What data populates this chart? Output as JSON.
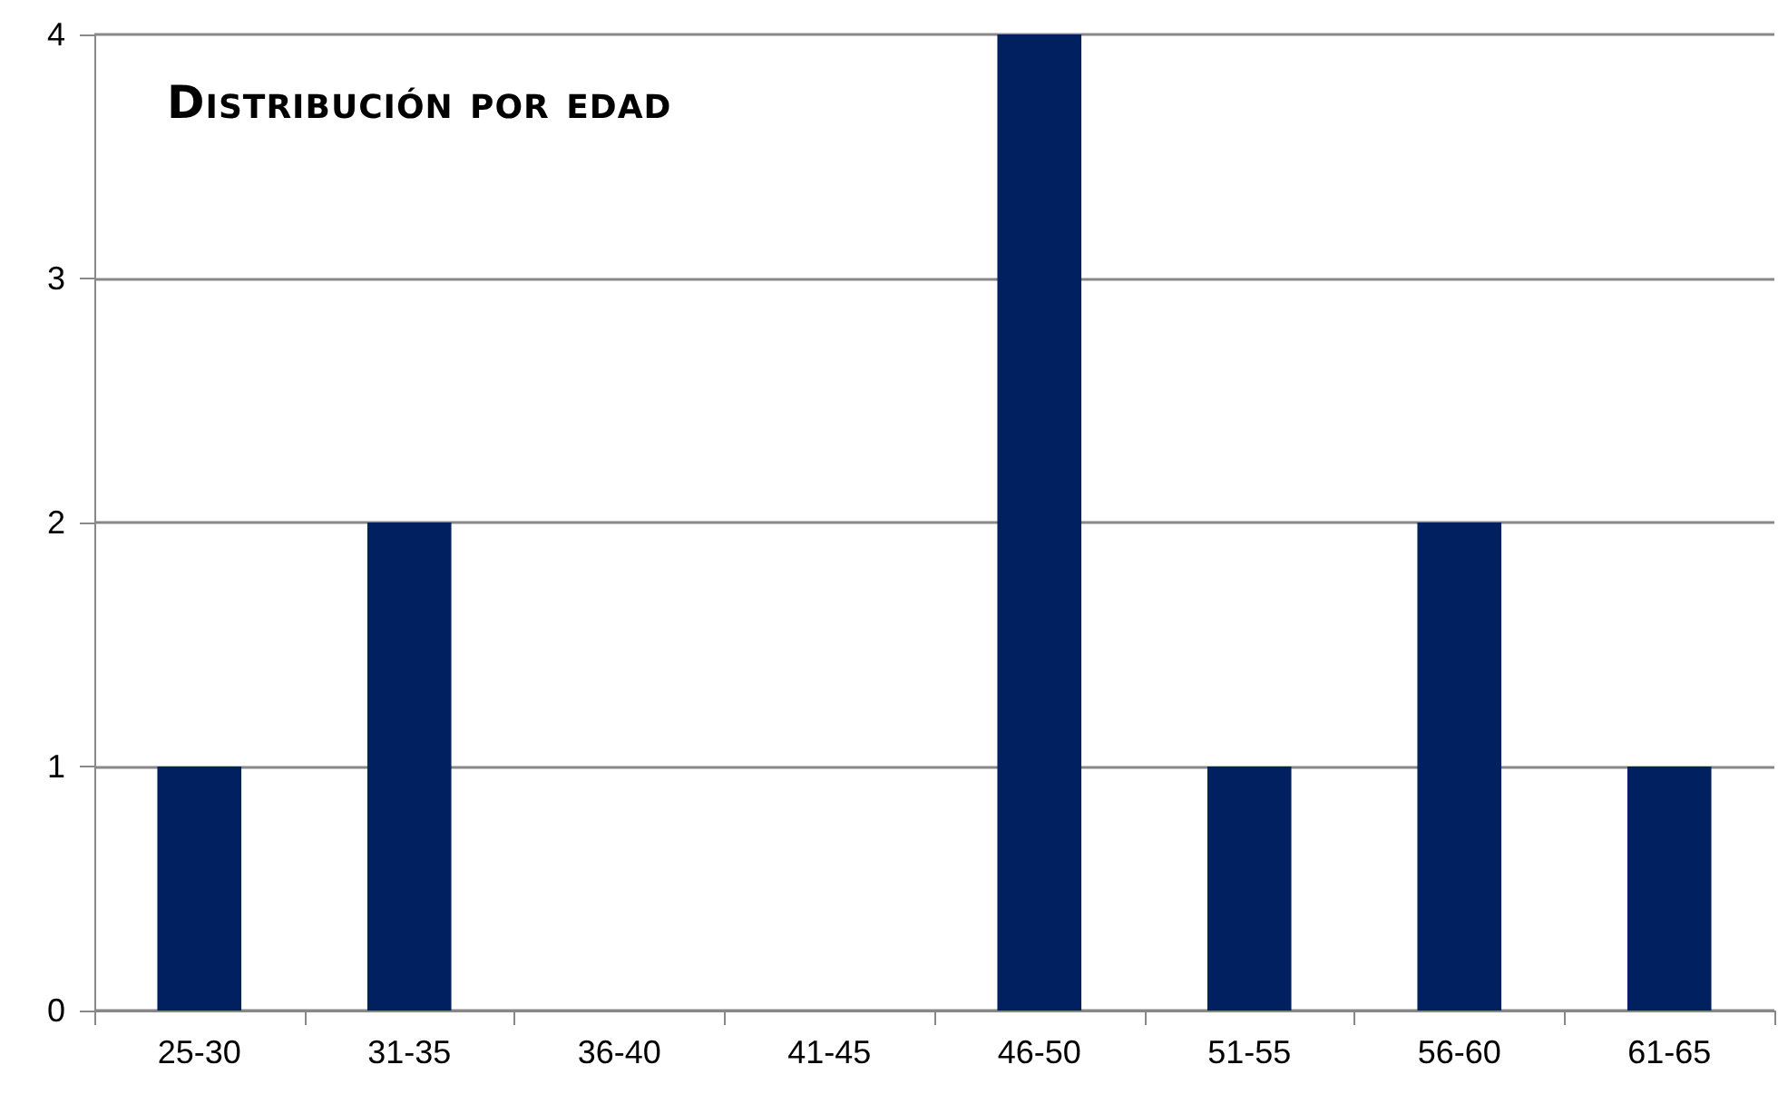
{
  "chart_data": {
    "type": "bar",
    "title": "Distribución por edad",
    "categories": [
      "25-30",
      "31-35",
      "36-40",
      "41-45",
      "46-50",
      "51-55",
      "56-60",
      "61-65"
    ],
    "values": [
      1,
      2,
      0,
      0,
      4,
      1,
      2,
      1
    ],
    "color": "#002060",
    "ylim": [
      0,
      4
    ],
    "yticks": [
      0,
      1,
      2,
      3,
      4
    ],
    "grid": "y"
  }
}
